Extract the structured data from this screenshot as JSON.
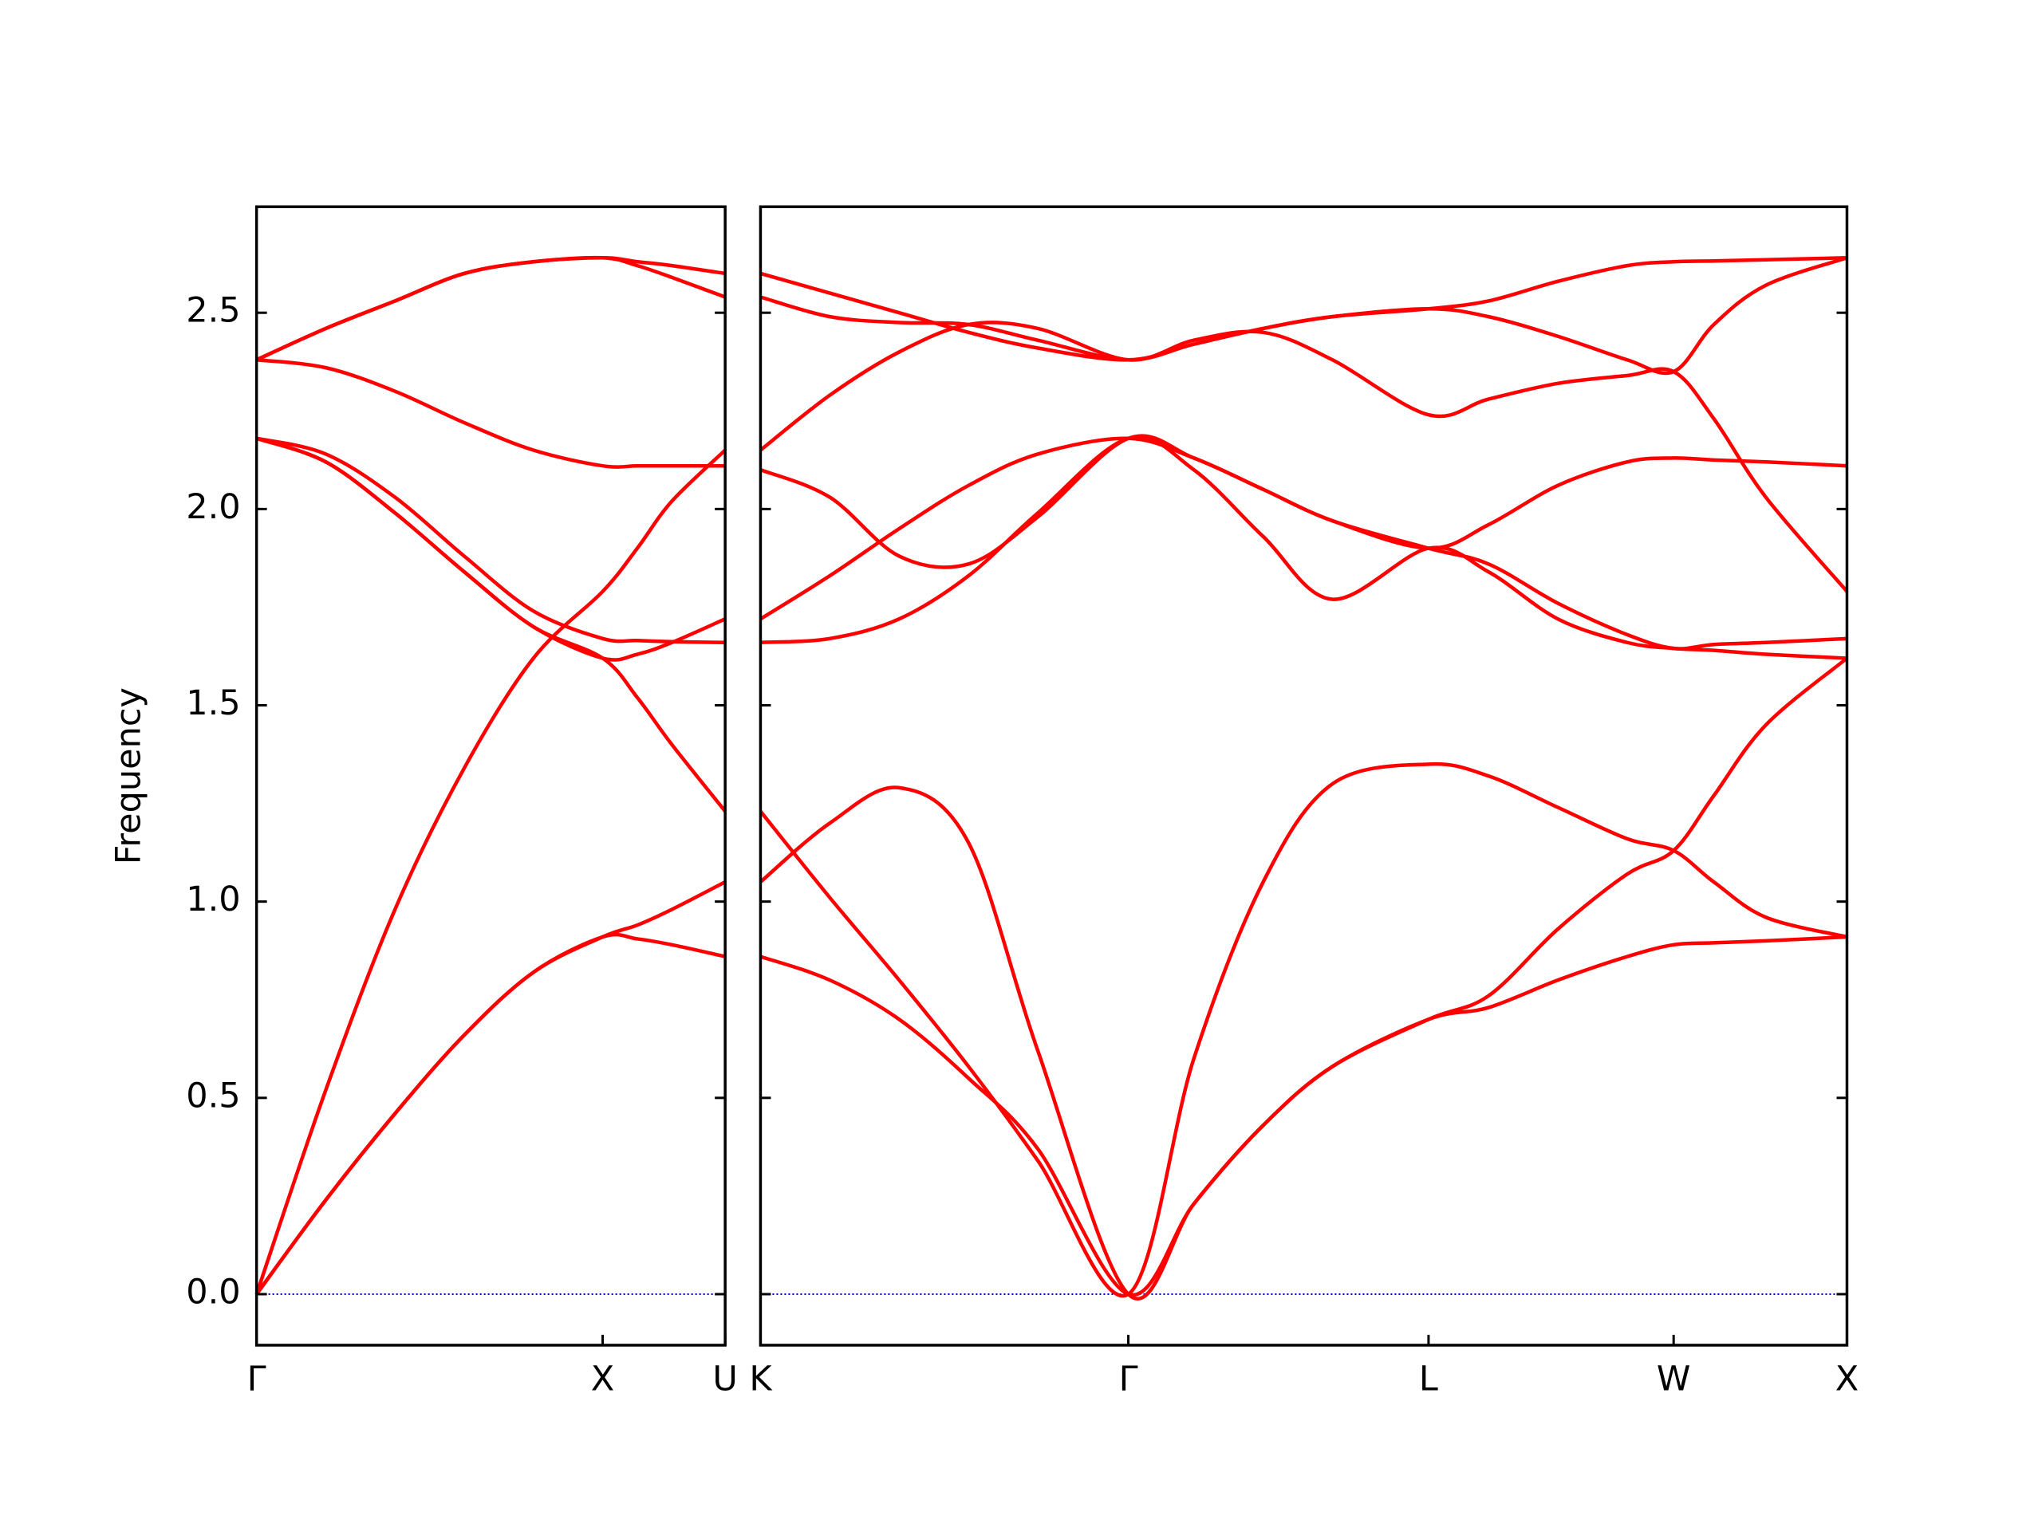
{
  "chart_data": [
    {
      "type": "line",
      "ylabel": "Frequency",
      "color": "#ff0000",
      "x": [
        0,
        0.2,
        0.4,
        0.6,
        0.8,
        1.0,
        1.1,
        1.2,
        1.354
      ],
      "series": [
        {
          "values": [
            0,
            0.24,
            0.46,
            0.66,
            0.82,
            0.91,
            0.905,
            0.89,
            0.86
          ]
        },
        {
          "values": [
            0,
            0.24,
            0.46,
            0.66,
            0.82,
            0.91,
            0.94,
            0.98,
            1.05
          ]
        },
        {
          "values": [
            0,
            0.52,
            0.98,
            1.34,
            1.62,
            1.79,
            1.9,
            2.02,
            2.15
          ]
        },
        {
          "values": [
            2.18,
            2.14,
            2.03,
            1.88,
            1.74,
            1.67,
            1.665,
            1.662,
            1.66
          ]
        },
        {
          "values": [
            2.18,
            2.12,
            1.99,
            1.84,
            1.7,
            1.62,
            1.63,
            1.66,
            1.72
          ]
        },
        {
          "values": [
            2.18,
            2.12,
            1.99,
            1.84,
            1.7,
            1.62,
            1.52,
            1.4,
            1.23
          ]
        },
        {
          "values": [
            2.38,
            2.36,
            2.3,
            2.22,
            2.15,
            2.11,
            2.11,
            2.11,
            2.11
          ]
        },
        {
          "values": [
            2.38,
            2.46,
            2.53,
            2.6,
            2.63,
            2.64,
            2.63,
            2.62,
            2.6
          ]
        },
        {
          "values": [
            2.38,
            2.46,
            2.53,
            2.6,
            2.63,
            2.64,
            2.62,
            2.59,
            2.54
          ]
        }
      ],
      "xlim": [
        0,
        1.354
      ],
      "xticks": [
        {
          "value": 0,
          "label": "Γ"
        },
        {
          "value": 1.0,
          "label": "X"
        },
        {
          "value": 1.354,
          "label": "U"
        }
      ],
      "ylim": [
        -0.13,
        2.77
      ],
      "yticks": [
        {
          "value": 0,
          "label": "0.0"
        },
        {
          "value": 0.5,
          "label": "0.5"
        },
        {
          "value": 1,
          "label": "1.0"
        },
        {
          "value": 1.5,
          "label": "1.5"
        },
        {
          "value": 2,
          "label": "2.0"
        },
        {
          "value": 2.5,
          "label": "2.5"
        }
      ],
      "hline": {
        "value": 0,
        "color": "#0000cc",
        "style": "dotted"
      }
    },
    {
      "type": "line",
      "color": "#ff0000",
      "x": [
        0,
        0.2,
        0.4,
        0.6,
        0.8,
        1.061,
        1.25,
        1.45,
        1.65,
        1.927,
        2.1,
        2.3,
        2.5,
        2.634,
        2.75,
        2.9,
        3.134
      ],
      "series": [
        {
          "values": [
            0.86,
            0.8,
            0.7,
            0.55,
            0.37,
            0,
            0.23,
            0.43,
            0.58,
            0.7,
            0.73,
            0.8,
            0.86,
            0.89,
            0.895,
            0.9,
            0.91
          ]
        },
        {
          "values": [
            1.05,
            1.2,
            1.29,
            1.15,
            0.62,
            0,
            0.23,
            0.43,
            0.58,
            0.7,
            0.76,
            0.93,
            1.07,
            1.13,
            1.27,
            1.45,
            1.62
          ]
        },
        {
          "values": [
            1.23,
            1.01,
            0.8,
            0.58,
            0.34,
            0,
            0.6,
            1.05,
            1.3,
            1.35,
            1.32,
            1.24,
            1.16,
            1.13,
            1.05,
            0.96,
            0.91
          ]
        },
        {
          "values": [
            1.66,
            1.67,
            1.72,
            1.83,
            1.99,
            2.18,
            2.1,
            1.93,
            1.77,
            1.9,
            1.84,
            1.72,
            1.66,
            1.645,
            1.64,
            1.63,
            1.62
          ]
        },
        {
          "values": [
            1.72,
            1.83,
            1.95,
            2.06,
            2.14,
            2.18,
            2.13,
            2.05,
            1.97,
            1.9,
            1.86,
            1.76,
            1.68,
            1.645,
            1.655,
            1.66,
            1.67
          ]
        },
        {
          "values": [
            2.1,
            2.03,
            1.88,
            1.86,
            1.98,
            2.18,
            2.13,
            2.05,
            1.97,
            1.9,
            1.96,
            2.06,
            2.12,
            2.13,
            2.125,
            2.12,
            2.11
          ]
        },
        {
          "values": [
            2.15,
            2.29,
            2.4,
            2.47,
            2.46,
            2.38,
            2.43,
            2.45,
            2.38,
            2.24,
            2.28,
            2.32,
            2.34,
            2.35,
            2.23,
            2.03,
            1.79
          ]
        },
        {
          "values": [
            2.54,
            2.49,
            2.475,
            2.47,
            2.43,
            2.38,
            2.42,
            2.46,
            2.49,
            2.51,
            2.49,
            2.44,
            2.38,
            2.35,
            2.47,
            2.57,
            2.64
          ]
        },
        {
          "values": [
            2.6,
            2.55,
            2.5,
            2.45,
            2.41,
            2.38,
            2.42,
            2.46,
            2.49,
            2.51,
            2.53,
            2.58,
            2.62,
            2.63,
            2.632,
            2.635,
            2.64
          ]
        }
      ],
      "xlim": [
        0,
        3.134
      ],
      "xticks": [
        {
          "value": 0,
          "label": "K"
        },
        {
          "value": 1.061,
          "label": "Γ"
        },
        {
          "value": 1.927,
          "label": "L"
        },
        {
          "value": 2.634,
          "label": "W"
        },
        {
          "value": 3.134,
          "label": "X"
        }
      ],
      "ylim": [
        -0.13,
        2.77
      ],
      "yticks": [
        0,
        0.5,
        1,
        1.5,
        2,
        2.5
      ],
      "hline": {
        "value": 0,
        "color": "#0000cc",
        "style": "dotted"
      }
    }
  ]
}
